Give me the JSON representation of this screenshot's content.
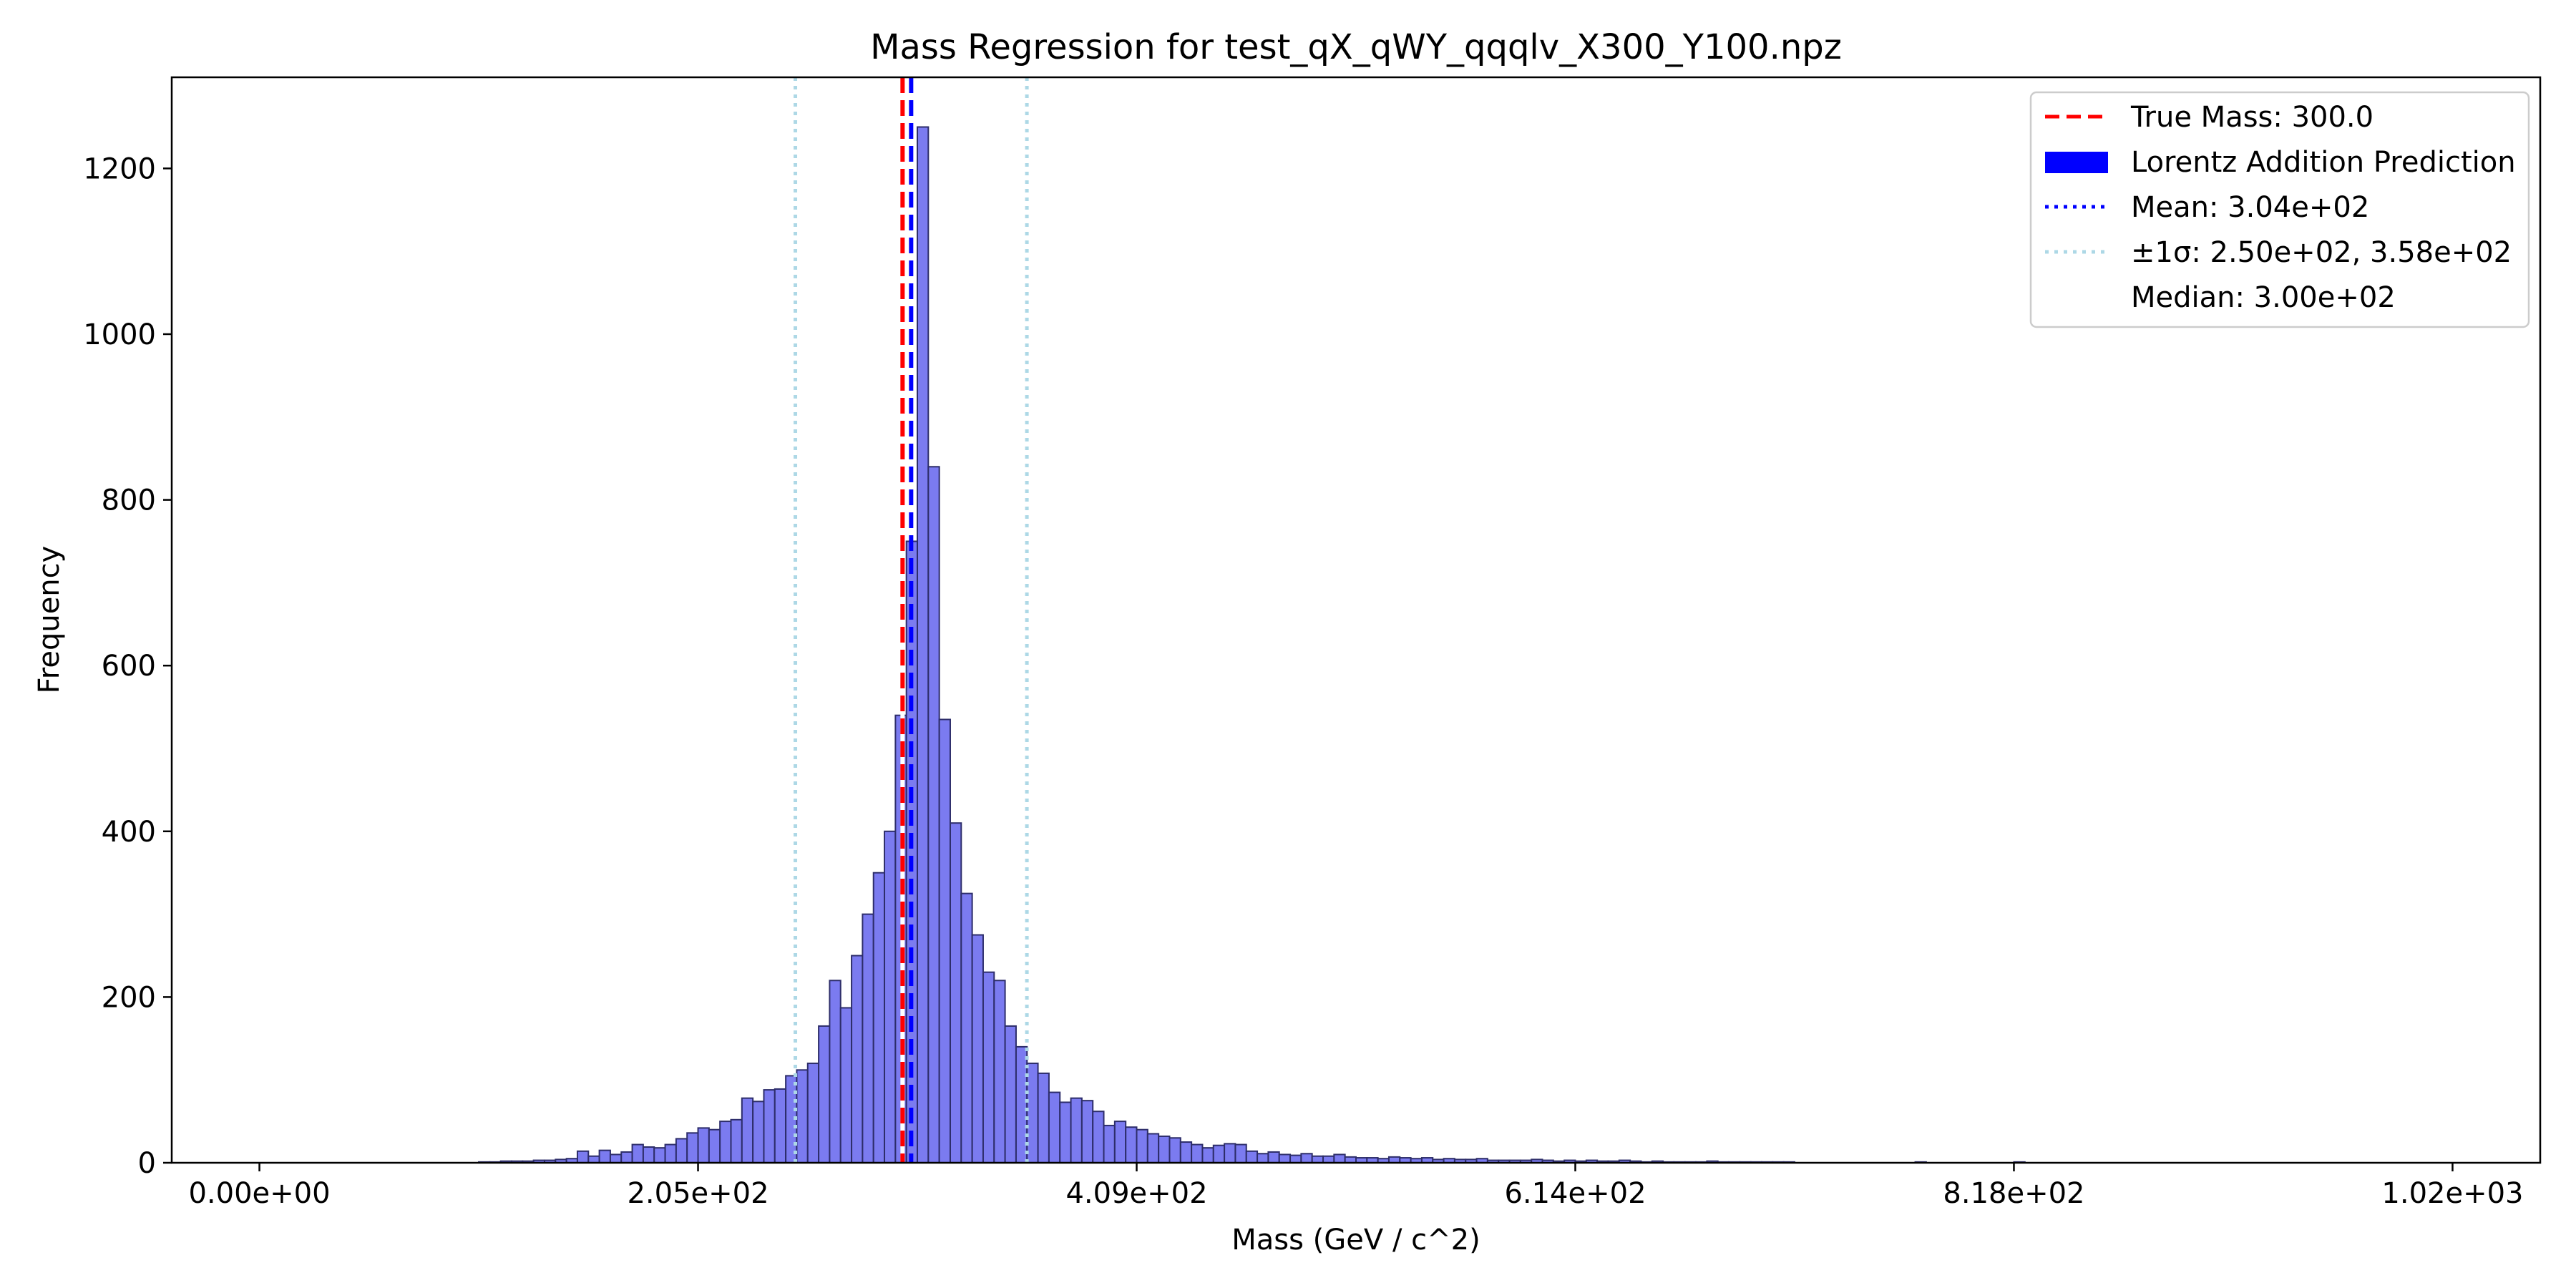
{
  "chart_data": {
    "type": "bar",
    "title": "Mass Regression for test_qX_qWY_qqqlv_X300_Y100.npz",
    "xlabel": "Mass (GeV / c^2)",
    "ylabel": "Frequency",
    "xlim": [
      -40.9,
      1063.9
    ],
    "ylim": [
      0,
      1310
    ],
    "grid": false,
    "legend_position": "top-right",
    "x_ticks": [
      {
        "value": 0,
        "label": "0.00e+00"
      },
      {
        "value": 204.6,
        "label": "2.05e+02"
      },
      {
        "value": 409.2,
        "label": "4.09e+02"
      },
      {
        "value": 613.8,
        "label": "6.14e+02"
      },
      {
        "value": 818.4,
        "label": "8.18e+02"
      },
      {
        "value": 1023,
        "label": "1.02e+03"
      }
    ],
    "y_ticks": [
      {
        "value": 0,
        "label": "0"
      },
      {
        "value": 200,
        "label": "200"
      },
      {
        "value": 400,
        "label": "400"
      },
      {
        "value": 600,
        "label": "600"
      },
      {
        "value": 800,
        "label": "800"
      },
      {
        "value": 1000,
        "label": "1000"
      },
      {
        "value": 1200,
        "label": "1200"
      }
    ],
    "histogram": {
      "name": "Lorentz Addition Prediction",
      "bin_width": 5.115,
      "bins_start": 102.3,
      "values": [
        1,
        1,
        2,
        2,
        2,
        3,
        3,
        4,
        5,
        14,
        8,
        15,
        10,
        13,
        22,
        19,
        18,
        22,
        29,
        36,
        42,
        40,
        50,
        52,
        78,
        74,
        88,
        89,
        105,
        112,
        120,
        165,
        220,
        187,
        250,
        300,
        350,
        400,
        540,
        750,
        1250,
        840,
        535,
        410,
        325,
        275,
        230,
        220,
        165,
        140,
        120,
        108,
        85,
        73,
        78,
        75,
        62,
        45,
        50,
        43,
        40,
        35,
        32,
        30,
        25,
        22,
        18,
        21,
        23,
        22,
        14,
        11,
        13,
        10,
        9,
        11,
        8,
        8,
        10,
        7,
        6,
        6,
        5,
        7,
        6,
        5,
        6,
        4,
        5,
        4,
        4,
        5,
        3,
        3,
        3,
        3,
        4,
        3,
        2,
        3,
        2,
        3,
        2,
        2,
        3,
        2,
        1,
        2,
        1,
        1,
        1,
        1,
        2,
        1,
        1,
        1,
        1,
        1,
        1,
        1,
        0,
        0,
        0,
        0,
        0,
        0,
        0,
        0,
        0,
        0,
        0,
        1,
        0,
        0,
        0,
        0,
        0,
        0,
        0,
        0,
        1,
        0,
        0,
        0,
        0,
        0,
        0,
        0,
        0,
        0,
        0,
        0,
        0,
        0,
        0,
        0,
        0,
        0,
        0,
        0,
        0,
        0,
        0,
        0,
        0,
        0,
        0,
        0,
        0,
        0,
        0,
        0,
        0,
        0,
        0,
        0,
        0,
        0,
        0,
        0,
        0,
        0,
        0,
        0,
        0,
        0,
        0,
        0,
        0,
        0,
        0,
        0,
        0,
        0,
        0,
        0,
        0,
        0,
        0,
        0,
        0,
        0
      ],
      "fill_color": "#7b7bf0",
      "edge_color": "#2d2d6a"
    },
    "lines": [
      {
        "name": "true",
        "x": 300.0,
        "color": "#ff0000",
        "style": "dashed"
      },
      {
        "name": "mean",
        "x": 304.0,
        "color": "#0000ff",
        "style": "dashed"
      },
      {
        "name": "sigma_low",
        "x": 250.0,
        "color": "#add8e6",
        "style": "dotted"
      },
      {
        "name": "sigma_high",
        "x": 358.0,
        "color": "#add8e6",
        "style": "dotted"
      },
      {
        "name": "median",
        "x": 300.0,
        "color": "#ffffff",
        "style": "solid"
      }
    ],
    "legend": [
      {
        "label": "True Mass: 300.0",
        "kind": "line",
        "color": "#ff0000",
        "style": "dashed"
      },
      {
        "label": "Lorentz Addition Prediction",
        "kind": "patch",
        "color": "#0000ff"
      },
      {
        "label": "Mean: 3.04e+02",
        "kind": "line",
        "color": "#0000ff",
        "style": "dotted"
      },
      {
        "label": "±1σ: 2.50e+02, 3.58e+02",
        "kind": "line",
        "color": "#add8e6",
        "style": "dotted"
      },
      {
        "label": "Median: 3.00e+02",
        "kind": "line",
        "color": "#ffffff",
        "style": "solid"
      }
    ]
  }
}
